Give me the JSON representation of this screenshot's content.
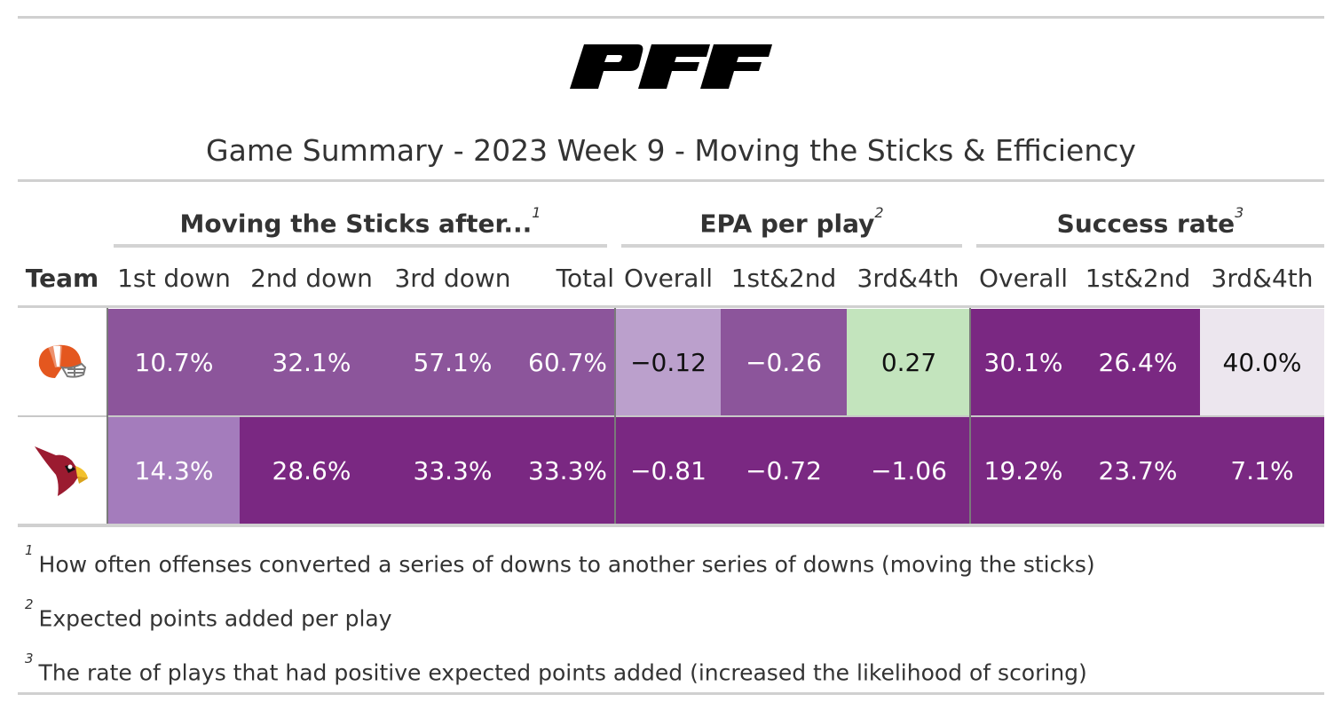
{
  "chart_data": {
    "type": "table",
    "title": "Game Summary - 2023 Week 9 - Moving the Sticks & Efficiency",
    "spanners": [
      {
        "label": "Moving the Sticks after...",
        "note": "1"
      },
      {
        "label": "EPA per play",
        "note": "2"
      },
      {
        "label": "Success rate",
        "note": "3"
      }
    ],
    "columns": [
      "Team",
      "1st down",
      "2nd down",
      "3rd down",
      "Total",
      "Overall",
      "1st&2nd",
      "3rd&4th",
      "Overall",
      "1st&2nd",
      "3rd&4th"
    ],
    "rows": [
      {
        "team_logo": "cleveland-browns-helmet",
        "values": [
          "10.7%",
          "32.1%",
          "57.1%",
          "60.7%",
          "−0.12",
          "−0.26",
          "0.27",
          "30.1%",
          "26.4%",
          "40.0%"
        ],
        "colors": [
          "#8c559b",
          "#8c559b",
          "#8c559b",
          "#8c559b",
          "#bba0cc",
          "#8c559b",
          "#c3e4bd",
          "#7a2882",
          "#7a2882",
          "#ece6ee"
        ],
        "text_colors": [
          "#ffffff",
          "#ffffff",
          "#ffffff",
          "#ffffff",
          "#111111",
          "#ffffff",
          "#111111",
          "#ffffff",
          "#ffffff",
          "#111111"
        ]
      },
      {
        "team_logo": "arizona-cardinals-logo",
        "values": [
          "14.3%",
          "28.6%",
          "33.3%",
          "33.3%",
          "−0.81",
          "−0.72",
          "−1.06",
          "19.2%",
          "23.7%",
          "7.1%"
        ],
        "colors": [
          "#a47cbc",
          "#7a2882",
          "#7a2882",
          "#7a2882",
          "#7a2882",
          "#7a2882",
          "#7a2882",
          "#7a2882",
          "#7a2882",
          "#7a2882"
        ],
        "text_colors": [
          "#ffffff",
          "#ffffff",
          "#ffffff",
          "#ffffff",
          "#ffffff",
          "#ffffff",
          "#ffffff",
          "#ffffff",
          "#ffffff",
          "#ffffff"
        ]
      }
    ],
    "footnotes": [
      {
        "mark": "1",
        "text": "How often offenses converted a series of downs to another series of downs (moving the sticks)"
      },
      {
        "mark": "2",
        "text": "Expected points added per play"
      },
      {
        "mark": "3",
        "text": "The rate of plays that had positive expected points added (increased the likelihood of scoring)"
      }
    ]
  },
  "brand": {
    "logo_text": "PFF",
    "logo_color": "#000000"
  }
}
